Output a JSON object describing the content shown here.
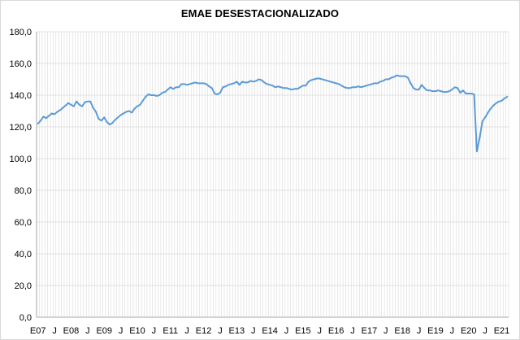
{
  "chart_data": {
    "type": "line",
    "title": "EMAE DESESTACIONALIZADO",
    "xlabel": "",
    "ylabel": "",
    "ylim": [
      0,
      180
    ],
    "grid": "vertical monthly lines and horizontal major lines",
    "legend": "none",
    "y_ticks": [
      "0,0",
      "20,0",
      "40,0",
      "60,0",
      "80,0",
      "100,0",
      "120,0",
      "140,0",
      "160,0",
      "180,0"
    ],
    "x_tick_labels": [
      "E07",
      "J",
      "E08",
      "J",
      "E09",
      "J",
      "E10",
      "J",
      "E11",
      "J",
      "E12",
      "J",
      "E13",
      "J",
      "E14",
      "J",
      "E15",
      "J",
      "E16",
      "J",
      "E17",
      "J",
      "E18",
      "J",
      "E19",
      "J",
      "E20",
      "J",
      "E21"
    ],
    "x_start": "2007-01",
    "x_end": "2021-03",
    "colors": {
      "line": "#5b9bd5",
      "grid": "#d9d9d9",
      "axis": "#a6a6a6"
    },
    "series": [
      {
        "name": "",
        "values": [
          122.0,
          124.0,
          126.5,
          125.5,
          127.0,
          128.5,
          128.0,
          129.5,
          130.5,
          132.0,
          133.5,
          135.0,
          134.0,
          133.0,
          136.0,
          134.0,
          133.0,
          135.5,
          136.0,
          136.0,
          132.0,
          129.5,
          125.0,
          124.0,
          126.0,
          123.0,
          121.5,
          122.5,
          124.5,
          126.0,
          127.5,
          128.5,
          129.5,
          130.0,
          129.0,
          131.5,
          133.0,
          134.0,
          136.5,
          139.0,
          140.5,
          140.0,
          140.0,
          139.5,
          140.0,
          141.5,
          142.0,
          143.5,
          145.0,
          144.0,
          145.0,
          145.0,
          147.0,
          147.0,
          146.5,
          147.0,
          147.5,
          148.0,
          147.5,
          147.5,
          147.5,
          147.0,
          145.5,
          144.5,
          141.0,
          140.5,
          141.5,
          145.0,
          145.5,
          146.5,
          147.0,
          147.5,
          148.5,
          146.5,
          148.5,
          148.0,
          148.0,
          149.0,
          148.5,
          149.0,
          150.0,
          149.5,
          148.0,
          147.0,
          146.5,
          146.0,
          145.0,
          145.5,
          145.0,
          144.5,
          144.5,
          144.0,
          143.5,
          144.0,
          144.0,
          145.0,
          146.0,
          146.0,
          148.5,
          149.5,
          150.0,
          150.5,
          150.5,
          150.0,
          149.5,
          149.0,
          148.5,
          148.0,
          147.5,
          147.0,
          146.0,
          145.0,
          144.5,
          144.5,
          145.0,
          145.0,
          145.5,
          145.0,
          145.5,
          146.0,
          146.5,
          147.0,
          147.5,
          147.5,
          148.5,
          149.0,
          150.0,
          150.0,
          151.0,
          151.5,
          152.5,
          152.0,
          152.0,
          152.0,
          151.0,
          147.5,
          144.5,
          143.5,
          143.5,
          146.5,
          144.5,
          143.0,
          143.0,
          142.5,
          142.5,
          143.0,
          142.5,
          142.0,
          142.0,
          142.5,
          143.5,
          145.0,
          144.5,
          141.5,
          143.0,
          141.0,
          141.0,
          141.0,
          140.5,
          104.5,
          113.0,
          123.5,
          126.0,
          129.0,
          131.5,
          133.5,
          135.0,
          136.0,
          136.5,
          138.0,
          139.0
        ]
      }
    ]
  }
}
